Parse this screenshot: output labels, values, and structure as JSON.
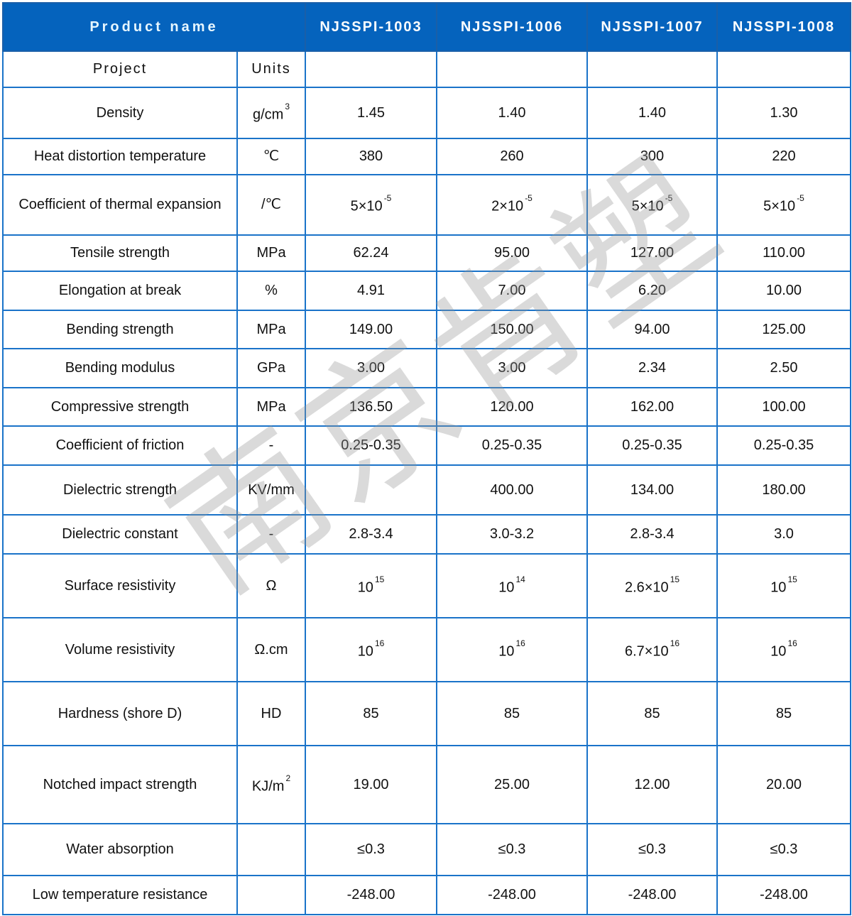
{
  "header": {
    "product_name_label": "Product name",
    "products": [
      "NJSSPI-1003",
      "NJSSPI-1006",
      "NJSSPI-1007",
      "NJSSPI-1008"
    ]
  },
  "subheader": {
    "project_label": "Project",
    "units_label": "Units"
  },
  "rows": [
    {
      "project": "Density",
      "unit": "g/cm",
      "unit_sup": "3",
      "values": [
        {
          "v": "1.45"
        },
        {
          "v": "1.40"
        },
        {
          "v": "1.40"
        },
        {
          "v": "1.30"
        }
      ]
    },
    {
      "project": "Heat distortion temperature",
      "unit": "℃",
      "values": [
        {
          "v": "380"
        },
        {
          "v": "260"
        },
        {
          "v": "300"
        },
        {
          "v": "220"
        }
      ]
    },
    {
      "project": "Coefficient of thermal expansion",
      "unit": "/℃",
      "values": [
        {
          "v": "5×10",
          "sup": "-5"
        },
        {
          "v": "2×10",
          "sup": "-5"
        },
        {
          "v": "5×10",
          "sup": "-5"
        },
        {
          "v": "5×10",
          "sup": "-5"
        }
      ]
    },
    {
      "project": "Tensile strength",
      "unit": "MPa",
      "values": [
        {
          "v": "62.24"
        },
        {
          "v": "95.00"
        },
        {
          "v": "127.00"
        },
        {
          "v": "110.00"
        }
      ]
    },
    {
      "project": "Elongation at break",
      "unit": "%",
      "values": [
        {
          "v": "4.91"
        },
        {
          "v": "7.00"
        },
        {
          "v": "6.20"
        },
        {
          "v": "10.00"
        }
      ]
    },
    {
      "project": "Bending strength",
      "unit": "MPa",
      "values": [
        {
          "v": "149.00"
        },
        {
          "v": "150.00"
        },
        {
          "v": "94.00"
        },
        {
          "v": "125.00"
        }
      ]
    },
    {
      "project": "Bending modulus",
      "unit": "GPa",
      "values": [
        {
          "v": "3.00"
        },
        {
          "v": "3.00"
        },
        {
          "v": "2.34"
        },
        {
          "v": "2.50"
        }
      ]
    },
    {
      "project": "Compressive strength",
      "unit": "MPa",
      "values": [
        {
          "v": "136.50"
        },
        {
          "v": "120.00"
        },
        {
          "v": "162.00"
        },
        {
          "v": "100.00"
        }
      ]
    },
    {
      "project": "Coefficient of friction",
      "unit": "-",
      "values": [
        {
          "v": "0.25-0.35"
        },
        {
          "v": "0.25-0.35"
        },
        {
          "v": "0.25-0.35"
        },
        {
          "v": "0.25-0.35"
        }
      ]
    },
    {
      "project": "Dielectric strength",
      "unit": "KV/mm",
      "values": [
        {
          "v": ""
        },
        {
          "v": "400.00"
        },
        {
          "v": "134.00"
        },
        {
          "v": "180.00"
        }
      ]
    },
    {
      "project": "Dielectric constant",
      "unit": "-",
      "values": [
        {
          "v": "2.8-3.4"
        },
        {
          "v": "3.0-3.2"
        },
        {
          "v": "2.8-3.4"
        },
        {
          "v": "3.0"
        }
      ]
    },
    {
      "project": "Surface resistivity",
      "unit": "Ω",
      "values": [
        {
          "v": "10",
          "sup": "15"
        },
        {
          "v": "10",
          "sup": "14"
        },
        {
          "v": "2.6×10",
          "sup": "15"
        },
        {
          "v": "10",
          "sup": "15"
        }
      ]
    },
    {
      "project": "Volume resistivity",
      "unit": "Ω.cm",
      "values": [
        {
          "v": "10",
          "sup": "16"
        },
        {
          "v": "10",
          "sup": "16"
        },
        {
          "v": "6.7×10",
          "sup": "16"
        },
        {
          "v": "10",
          "sup": "16"
        }
      ]
    },
    {
      "project": "Hardness (shore D)",
      "unit": "HD",
      "values": [
        {
          "v": "85"
        },
        {
          "v": "85"
        },
        {
          "v": "85"
        },
        {
          "v": "85"
        }
      ]
    },
    {
      "project": "Notched impact strength",
      "unit": "KJ/m",
      "unit_sup": "2",
      "values": [
        {
          "v": "19.00"
        },
        {
          "v": "25.00"
        },
        {
          "v": "12.00"
        },
        {
          "v": "20.00"
        }
      ]
    },
    {
      "project": "Water absorption",
      "unit": "",
      "values": [
        {
          "v": "≤0.3"
        },
        {
          "v": "≤0.3"
        },
        {
          "v": "≤0.3"
        },
        {
          "v": "≤0.3"
        }
      ]
    },
    {
      "project": "Low temperature resistance",
      "unit": "",
      "values": [
        {
          "v": "-248.00"
        },
        {
          "v": "-248.00"
        },
        {
          "v": "-248.00"
        },
        {
          "v": "-248.00"
        }
      ]
    }
  ],
  "watermark": {
    "text": "南京肯塑"
  },
  "colors": {
    "header_bg": "#0563bd",
    "border": "#1a73c9"
  }
}
